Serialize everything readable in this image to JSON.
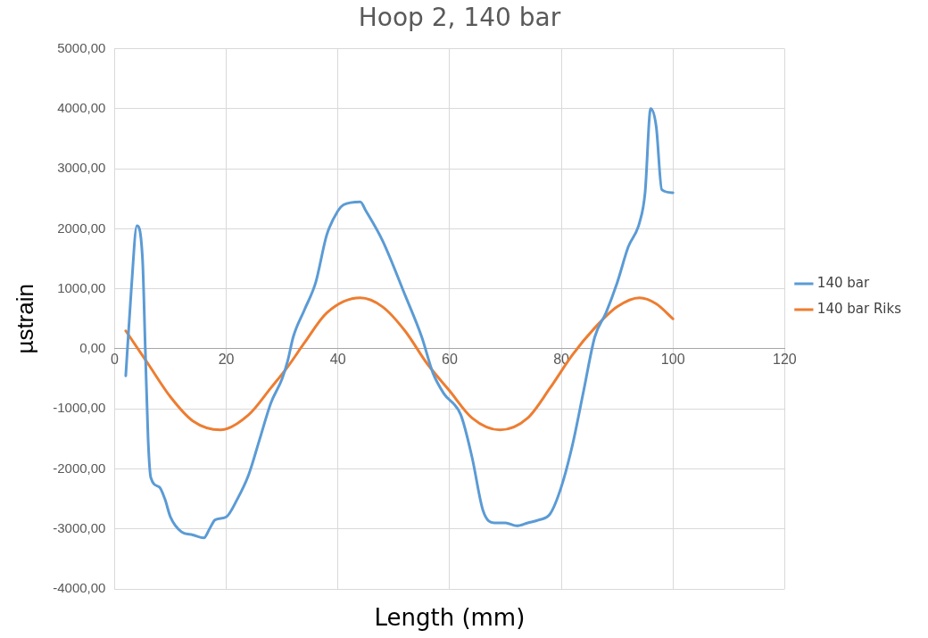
{
  "chart_data": {
    "type": "line",
    "title": "Hoop 2, 140 bar",
    "xlabel": "Length (mm)",
    "ylabel": "µstrain",
    "xlim": [
      0,
      120
    ],
    "xticks": [
      0,
      20,
      40,
      60,
      80,
      100,
      120
    ],
    "ylim": [
      -4000,
      5000
    ],
    "yticks": [
      {
        "value": -4000,
        "label": "-4000,00"
      },
      {
        "value": -3000,
        "label": "-3000,00"
      },
      {
        "value": -2000,
        "label": "-2000,00"
      },
      {
        "value": -1000,
        "label": "-1000,00"
      },
      {
        "value": 0,
        "label": "0,00"
      },
      {
        "value": 1000,
        "label": "1000,00"
      },
      {
        "value": 2000,
        "label": "2000,00"
      },
      {
        "value": 3000,
        "label": "3000,00"
      },
      {
        "value": 4000,
        "label": "4000,00"
      },
      {
        "value": 5000,
        "label": "5000,00"
      }
    ],
    "grid": true,
    "legend": "right",
    "marker": "none",
    "line_style": "solid",
    "series": [
      {
        "name": "140 bar",
        "color": "#5b9bd5",
        "x": [
          2,
          3,
          4,
          5,
          5.5,
          6,
          6.5,
          8,
          9,
          10,
          12,
          14,
          16,
          17,
          18,
          20,
          22,
          24,
          26,
          28,
          30,
          31,
          32,
          34,
          36,
          38,
          40,
          41,
          44,
          45,
          48,
          52,
          55,
          57,
          59,
          62,
          64,
          66,
          68,
          70,
          72,
          74,
          76,
          78,
          80,
          82,
          84,
          86,
          88,
          90,
          92,
          94,
          95,
          96,
          97,
          98,
          100
        ],
        "values": [
          -450,
          1000,
          2050,
          1500,
          0,
          -1500,
          -2150,
          -2300,
          -2500,
          -2800,
          -3050,
          -3100,
          -3150,
          -3000,
          -2850,
          -2800,
          -2500,
          -2100,
          -1500,
          -900,
          -500,
          -200,
          200,
          650,
          1100,
          1900,
          2300,
          2400,
          2450,
          2300,
          1800,
          900,
          200,
          -400,
          -750,
          -1100,
          -1800,
          -2700,
          -2900,
          -2900,
          -2950,
          -2900,
          -2850,
          -2750,
          -2300,
          -1600,
          -700,
          200,
          600,
          1100,
          1700,
          2100,
          2600,
          4000,
          3700,
          2650,
          2600
        ]
      },
      {
        "name": "140 bar Riks",
        "color": "#ed7d31",
        "x": [
          2,
          6,
          10,
          14,
          19,
          24,
          28,
          31,
          34,
          38,
          44,
          48,
          52,
          56,
          60,
          64,
          69,
          74,
          78,
          82,
          86,
          90,
          94,
          97,
          100
        ],
        "values": [
          300,
          -250,
          -800,
          -1200,
          -1350,
          -1100,
          -650,
          -300,
          100,
          600,
          850,
          700,
          300,
          -250,
          -700,
          -1150,
          -1350,
          -1150,
          -650,
          -100,
          350,
          700,
          850,
          750,
          500
        ]
      }
    ]
  }
}
